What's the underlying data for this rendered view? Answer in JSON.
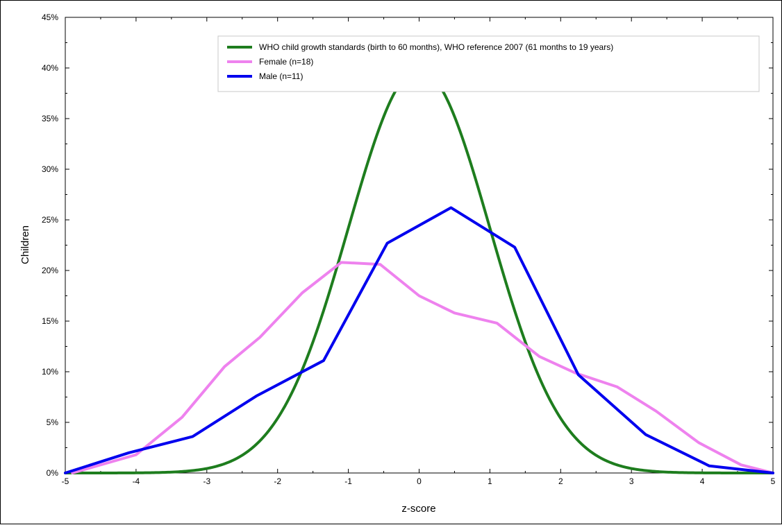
{
  "chart_data": {
    "type": "line",
    "title": "",
    "xlabel": "z-score",
    "ylabel": "Children",
    "xlim": [
      -5,
      5
    ],
    "ylim": [
      0,
      45
    ],
    "x_ticks": [
      -5,
      -4,
      -3,
      -2,
      -1,
      0,
      1,
      2,
      3,
      4,
      5
    ],
    "x_tick_labels": [
      "-5",
      "-4",
      "-3",
      "-2",
      "-1",
      "0",
      "1",
      "2",
      "3",
      "4",
      "5"
    ],
    "y_ticks": [
      0,
      5,
      10,
      15,
      20,
      25,
      30,
      35,
      40,
      45
    ],
    "y_tick_labels": [
      "0%",
      "5%",
      "10%",
      "15%",
      "20%",
      "25%",
      "30%",
      "35%",
      "40%",
      "45%"
    ],
    "grid": false,
    "legend_position": "top-right",
    "series": [
      {
        "name": "WHO child growth standards (birth to 60 months), WHO reference 2007 (61 months to 19 years)",
        "color": "#1e7d1e",
        "kind": "normal-curve",
        "x": [
          -5,
          -4.5,
          -4,
          -3.5,
          -3,
          -2.5,
          -2,
          -1.75,
          -1.5,
          -1.25,
          -1,
          -0.75,
          -0.5,
          -0.25,
          0,
          0.25,
          0.5,
          0.75,
          1,
          1.25,
          1.5,
          1.75,
          2,
          2.5,
          3,
          3.5,
          4,
          4.5,
          5
        ],
        "values": [
          0,
          0,
          0.01,
          0.09,
          0.44,
          1.75,
          5.4,
          8.63,
          12.95,
          18.26,
          24.2,
          30.11,
          35.21,
          38.67,
          39.89,
          38.67,
          35.21,
          30.11,
          24.2,
          18.26,
          12.95,
          8.63,
          5.4,
          1.75,
          0.44,
          0.09,
          0.01,
          0,
          0
        ]
      },
      {
        "name": "Female (n=18)",
        "color": "#ee82ee",
        "x": [
          -4.9,
          -4,
          -3.35,
          -2.75,
          -2.25,
          -1.65,
          -1.1,
          -0.55,
          0,
          0.5,
          1.1,
          1.7,
          2.2,
          2.8,
          3.35,
          3.95,
          4.55,
          5
        ],
        "values": [
          0,
          1.8,
          5.5,
          10.5,
          13.4,
          17.8,
          20.8,
          20.6,
          17.5,
          15.8,
          14.8,
          11.5,
          9.9,
          8.5,
          6.1,
          3.0,
          0.8,
          0
        ]
      },
      {
        "name": "Male (n=11)",
        "color": "#0000ee",
        "x": [
          -5,
          -4.1,
          -3.2,
          -2.3,
          -1.35,
          -0.45,
          0.45,
          1.35,
          2.25,
          3.2,
          4.1,
          5
        ],
        "values": [
          0,
          2.0,
          3.6,
          7.6,
          11.1,
          22.7,
          26.2,
          22.3,
          9.7,
          3.8,
          0.7,
          0
        ]
      }
    ]
  }
}
